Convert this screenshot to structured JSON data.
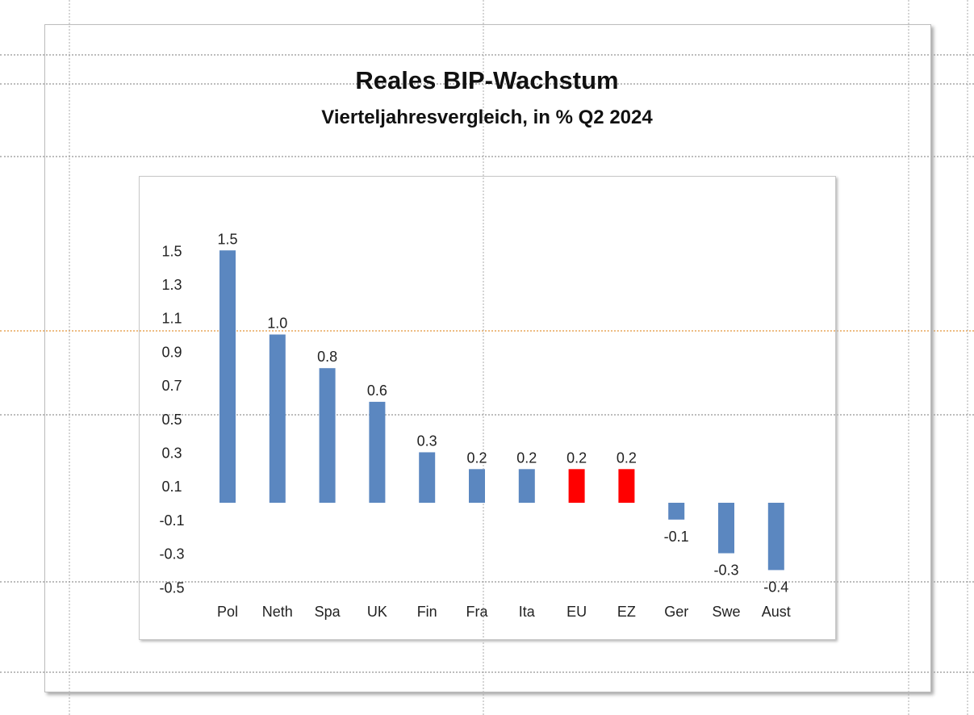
{
  "chart_data": {
    "type": "bar",
    "title": "Reales BIP-Wachstum",
    "subtitle": "Vierteljahresvergleich, in % Q2 2024",
    "categories": [
      "Pol",
      "Neth",
      "Spa",
      "UK",
      "Fin",
      "Fra",
      "Ita",
      "EU",
      "EZ",
      "Ger",
      "Swe",
      "Aust"
    ],
    "values": [
      1.5,
      1.0,
      0.8,
      0.6,
      0.3,
      0.2,
      0.2,
      0.2,
      0.2,
      -0.1,
      -0.3,
      -0.4
    ],
    "data_labels": [
      "1.5",
      "1.0",
      "0.8",
      "0.6",
      "0.3",
      "0.2",
      "0.2",
      "0.2",
      "0.2",
      "-0.1",
      "-0.3",
      "-0.4"
    ],
    "highlight": [
      "EU",
      "EZ"
    ],
    "colors": {
      "default": "#5b87c0",
      "highlight": "#ff0000"
    },
    "yticks": [
      "1.5",
      "1.3",
      "1.1",
      "0.9",
      "0.7",
      "0.5",
      "0.3",
      "0.1",
      "-0.1",
      "-0.3",
      "-0.5"
    ],
    "ytick_values": [
      1.5,
      1.3,
      1.1,
      0.9,
      0.7,
      0.5,
      0.3,
      0.1,
      -0.1,
      -0.3,
      -0.5
    ],
    "ylim": [
      -0.5,
      1.5
    ],
    "xlabel": "",
    "ylabel": "",
    "grid": false,
    "legend": "none"
  }
}
